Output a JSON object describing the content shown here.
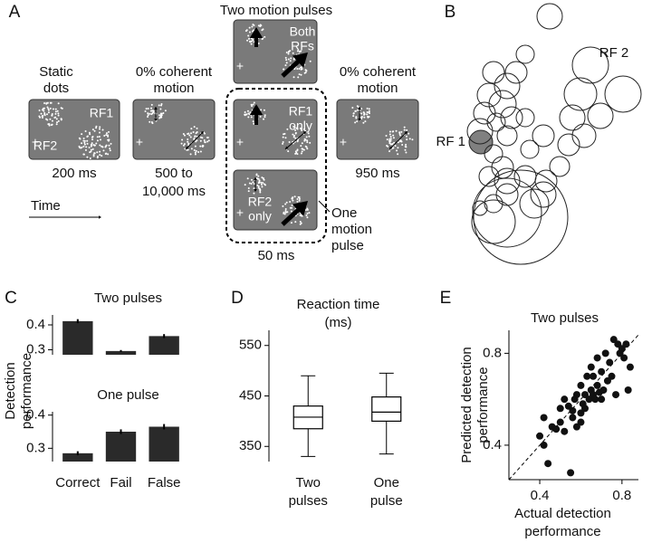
{
  "panel_a": {
    "label": "A",
    "title": "Two motion pulses",
    "static": [
      "Static",
      "dots"
    ],
    "rf1": "RF1",
    "rf2": "RF2",
    "t_static": "200 ms",
    "coherent_1": [
      "0% coherent",
      "motion"
    ],
    "t_coherent_1": [
      "500 to",
      "10,000 ms"
    ],
    "both": [
      "Both",
      "RFs"
    ],
    "rf1_only": [
      "RF1",
      "only"
    ],
    "rf2_only": [
      "RF2",
      "only"
    ],
    "t_pulse": "50 ms",
    "one_pulse": [
      "One",
      "motion",
      "pulse"
    ],
    "coherent_2": [
      "0% coherent",
      "motion"
    ],
    "t_coherent_2": "950 ms",
    "time": "Time"
  },
  "chart_data": [
    {
      "type": "bubble",
      "label": "B",
      "annotations": [
        "RF 1",
        "RF 2"
      ],
      "x": [
        41,
        117,
        198,
        162,
        151,
        173,
        142,
        155,
        138,
        128,
        113,
        90,
        80,
        70,
        55,
        50,
        65,
        45,
        58,
        75,
        90,
        110,
        95,
        70,
        55,
        65,
        50,
        70,
        90,
        110,
        100,
        70,
        55,
        40,
        85,
        70,
        55,
        40
      ],
      "values": [
        143,
        282,
        196,
        228,
        196,
        172,
        170,
        150,
        140,
        116,
        100,
        240,
        220,
        205,
        220,
        195,
        185,
        175,
        165,
        170,
        170,
        150,
        135,
        150,
        130,
        115,
        105,
        100,
        105,
        85,
        75,
        85,
        75,
        70,
        60,
        65,
        55,
        155
      ],
      "sizes": [
        13,
        14,
        20,
        20,
        18,
        14,
        14,
        13,
        12,
        11,
        12,
        10,
        12,
        14,
        12,
        13,
        15,
        12,
        10,
        12,
        10,
        12,
        10,
        11,
        10,
        12,
        11,
        14,
        12,
        14,
        16,
        12,
        10,
        8,
        52,
        38,
        24,
        14
      ],
      "xlim": [
        0,
        230
      ],
      "ylim": [
        0,
        300
      ],
      "color": "#222222",
      "highlight": 0,
      "highlight_color": "#808080"
    },
    {
      "type": "bar",
      "label": "C",
      "title": "Two pulses",
      "ylabel": [
        "Detection",
        "performance"
      ],
      "values": [
        0.415,
        0.295,
        0.355
      ],
      "errors": [
        0.008,
        0.004,
        0.008
      ],
      "ylim": [
        0.28,
        0.44
      ],
      "yticks": [
        0.3,
        0.4
      ],
      "color": "#2a2a2a"
    },
    {
      "type": "bar",
      "title": "One pulse",
      "categories": [
        "Correct",
        "Fail",
        "False"
      ],
      "values": [
        0.285,
        0.35,
        0.365
      ],
      "errors": [
        0.006,
        0.007,
        0.008
      ],
      "ylim": [
        0.26,
        0.41
      ],
      "yticks": [
        0.3,
        0.4
      ],
      "color": "#2a2a2a"
    },
    {
      "type": "box",
      "label": "D",
      "title": [
        "Reaction time",
        "(ms)"
      ],
      "categories": [
        [
          "Two",
          "pulses"
        ],
        [
          "One",
          "pulse"
        ]
      ],
      "boxes": [
        {
          "whisker_low": 330,
          "q1": 385,
          "median": 408,
          "q3": 430,
          "whisker_high": 490
        },
        {
          "whisker_low": 335,
          "q1": 400,
          "median": 418,
          "q3": 448,
          "whisker_high": 495
        }
      ],
      "ylim": [
        320,
        580
      ],
      "yticks": [
        350,
        450,
        550
      ]
    },
    {
      "type": "scatter",
      "label": "E",
      "title": "Two pulses",
      "xlabel": [
        "Actual detection",
        "performance"
      ],
      "ylabel": [
        "Predicted detection",
        "performance"
      ],
      "x": [
        0.4,
        0.42,
        0.44,
        0.46,
        0.48,
        0.5,
        0.5,
        0.52,
        0.54,
        0.55,
        0.56,
        0.57,
        0.58,
        0.58,
        0.6,
        0.6,
        0.61,
        0.62,
        0.62,
        0.63,
        0.64,
        0.65,
        0.65,
        0.66,
        0.67,
        0.68,
        0.68,
        0.69,
        0.7,
        0.7,
        0.71,
        0.72,
        0.73,
        0.74,
        0.75,
        0.76,
        0.77,
        0.78,
        0.79,
        0.8,
        0.81,
        0.82,
        0.83,
        0.84,
        0.42,
        0.56,
        0.52,
        0.6,
        0.66
      ],
      "values": [
        0.44,
        0.52,
        0.32,
        0.48,
        0.47,
        0.5,
        0.56,
        0.46,
        0.57,
        0.28,
        0.52,
        0.6,
        0.48,
        0.62,
        0.54,
        0.66,
        0.58,
        0.62,
        0.56,
        0.7,
        0.6,
        0.64,
        0.74,
        0.62,
        0.6,
        0.66,
        0.78,
        0.63,
        0.72,
        0.6,
        0.64,
        0.8,
        0.68,
        0.76,
        0.7,
        0.86,
        0.62,
        0.84,
        0.8,
        0.82,
        0.78,
        0.84,
        0.64,
        0.74,
        0.4,
        0.55,
        0.6,
        0.5,
        0.7
      ],
      "xlim": [
        0.25,
        0.88
      ],
      "ylim": [
        0.25,
        0.9
      ],
      "xticks": [
        0.4,
        0.8
      ],
      "yticks": [
        0.4,
        0.8
      ],
      "identity_line": true,
      "color": "#111111"
    }
  ]
}
